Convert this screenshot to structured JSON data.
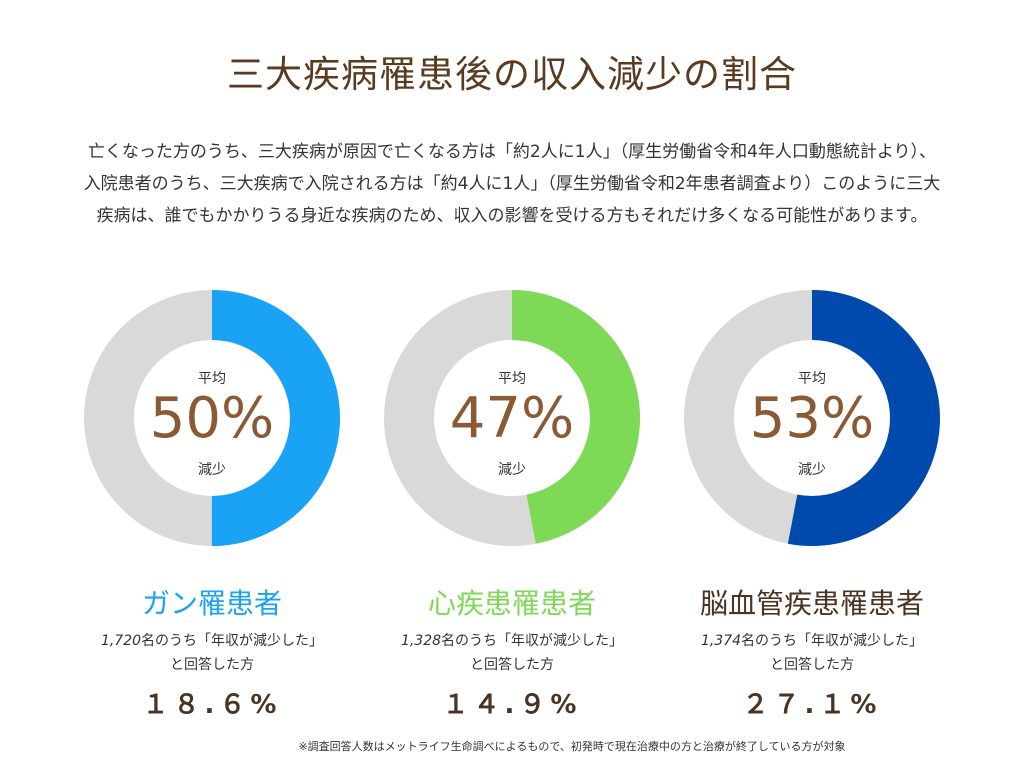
{
  "title": "三大疾病罹患後の収入減少の割合",
  "intro": "亡くなった方のうち、三大疾病が原因で亡くなる方は「約2人に1人」（厚生労働省令和4年人口動態統計より）、入院患者のうち、三大疾病で入院される方は「約4人に1人」（厚生労働省令和2年患者調査より）このように三大疾病は、誰でもかかりうる身近な疾病のため、収入の影響を受ける方もそれだけ多くなる可能性があります。",
  "panels": [
    {
      "top_label": "平均",
      "value_text": "50%",
      "bottom_label": "減少",
      "name": "ガン罹患者",
      "note_count": "1,720",
      "note_rest": "名のうち「年収が減少した」",
      "note_line2": "と回答した方",
      "result": "１８.６%"
    },
    {
      "top_label": "平均",
      "value_text": "47%",
      "bottom_label": "減少",
      "name": "心疾患罹患者",
      "note_count": "1,328",
      "note_rest": "名のうち「年収が減少した」",
      "note_line2": "と回答した方",
      "result": "１４.９%"
    },
    {
      "top_label": "平均",
      "value_text": "53%",
      "bottom_label": "減少",
      "name": "脳血管疾患罹患者",
      "note_count": "1,374",
      "note_rest": "名のうち「年収が減少した」",
      "note_line2": "と回答した方",
      "result": "２７.１%"
    }
  ],
  "footnote": "※調査回答人数はメットライフ生命調べによるもので、初発時で現在治療中の方と治療が終了している方が対象",
  "chart_data": [
    {
      "type": "pie",
      "name": "ガン罹患者",
      "values": [
        50,
        50
      ],
      "colors": [
        "#1aa3f5",
        "#d9d9d9"
      ]
    },
    {
      "type": "pie",
      "name": "心疾患罹患者",
      "values": [
        47,
        53
      ],
      "colors": [
        "#7ed957",
        "#d9d9d9"
      ]
    },
    {
      "type": "pie",
      "name": "脳血管疾患罹患者",
      "values": [
        53,
        47
      ],
      "colors": [
        "#004aad",
        "#d9d9d9"
      ]
    }
  ],
  "colors": {
    "title": "#5a3b20",
    "value": "#8a5a34",
    "name_colors": [
      "#1aa3f5",
      "#7ed957",
      "#4a3320"
    ],
    "track": "#d9d9d9"
  }
}
